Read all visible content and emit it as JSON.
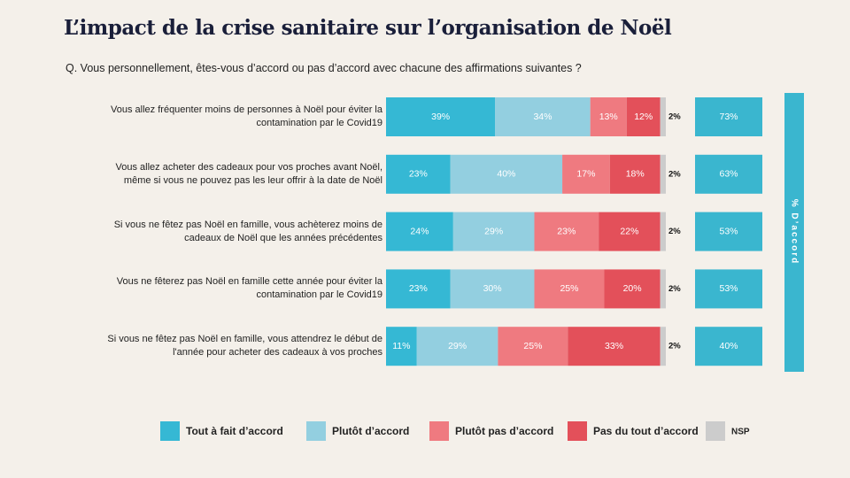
{
  "chart_data": {
    "type": "stacked-bar-horizontal",
    "title": "L’impact de la crise sanitaire sur l’organisation de Noël",
    "subtitle": "Q. Vous personnellement, êtes-vous d’accord ou pas d’accord avec chacune des affirmations suivantes ?",
    "categories": [
      "Vous allez fréquenter moins de personnes à Noël pour éviter la contamination par le Covid19",
      "Vous allez acheter des cadeaux pour vos proches avant Noël, même si vous ne pouvez pas les leur offrir à la date de Noël",
      "Si vous ne fêtez pas Noël en famille, vous achèterez moins de cadeaux de Noël que les années précédentes",
      "Vous ne fêterez pas Noël en famille cette année pour éviter la contamination par le Covid19",
      "Si vous ne fêtez pas Noël en famille, vous attendrez le début de l'année pour acheter des cadeaux à vos proches"
    ],
    "xlim": [
      0,
      100
    ],
    "series": [
      {
        "name": "Tout à fait d’accord",
        "color": "#35b8d4",
        "values": [
          39,
          23,
          24,
          23,
          11
        ],
        "value_labels": [
          "39%",
          "23%",
          "24%",
          "23%",
          "11%"
        ]
      },
      {
        "name": "Plutôt d’accord",
        "color": "#93cfe0",
        "values": [
          34,
          40,
          29,
          30,
          29
        ],
        "value_labels": [
          "34%",
          "40%",
          "29%",
          "30%",
          "29%"
        ]
      },
      {
        "name": "Plutôt pas d’accord",
        "color": "#ef7a80",
        "values": [
          13,
          17,
          23,
          25,
          25
        ],
        "value_labels": [
          "13%",
          "17%",
          "23%",
          "25%",
          "25%"
        ]
      },
      {
        "name": "Pas du tout d’accord",
        "color": "#e3505a",
        "values": [
          12,
          18,
          22,
          20,
          33
        ],
        "value_labels": [
          "12%",
          "18%",
          "22%",
          "20%",
          "33%"
        ]
      },
      {
        "name": "NSP",
        "color": "#cccccc",
        "values": [
          2,
          2,
          2,
          2,
          2
        ],
        "value_labels": [
          "2%",
          "2%",
          "2%",
          "2%",
          "2%"
        ]
      }
    ],
    "agree_total": {
      "title": "% D’accord",
      "color": "#3ab6cf",
      "values": [
        73,
        63,
        53,
        53,
        40
      ],
      "value_labels": [
        "73%",
        "63%",
        "53%",
        "53%",
        "40%"
      ]
    }
  }
}
